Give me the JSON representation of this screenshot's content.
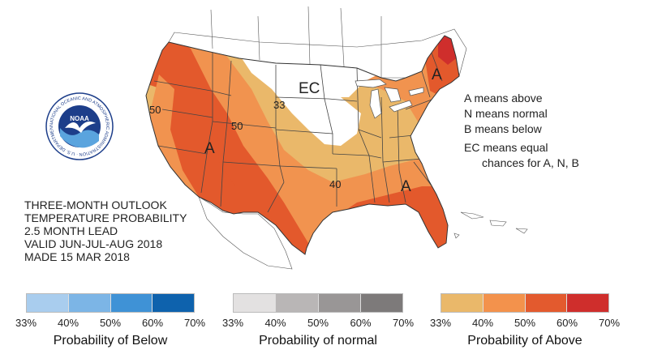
{
  "map": {
    "contour_labels": [
      "50",
      "50",
      "33",
      "40"
    ],
    "region_letters": [
      "A",
      "A",
      "A",
      "EC"
    ]
  },
  "logo": {
    "name": "NOAA",
    "ring_text": "NATIONAL OCEANIC AND ATMOSPHERIC ADMINISTRATION · U.S. DEPARTMENT OF COMMERCE"
  },
  "outlook": {
    "lines": [
      "THREE-MONTH OUTLOOK",
      "TEMPERATURE PROBABILITY",
      "2.5 MONTH LEAD",
      "VALID JUN-JUL-AUG 2018",
      "MADE 15 MAR 2018"
    ]
  },
  "key": {
    "lines": [
      "A means above",
      "N means normal",
      "B means below",
      "EC means equal",
      "chances for A, N, B"
    ]
  },
  "legends": [
    {
      "title": "Probability of Below",
      "ticks": [
        "33%",
        "40%",
        "50%",
        "60%",
        "70%"
      ],
      "colors": [
        "#a9cdee",
        "#7cb5e6",
        "#3f92d6",
        "#0e62ad"
      ]
    },
    {
      "title": "Probability of normal",
      "ticks": [
        "33%",
        "40%",
        "50%",
        "60%",
        "70%"
      ],
      "colors": [
        "#e3e1e1",
        "#b9b6b6",
        "#999696",
        "#7d7a7a"
      ]
    },
    {
      "title": "Probability of Above",
      "ticks": [
        "33%",
        "40%",
        "50%",
        "60%",
        "70%"
      ],
      "colors": [
        "#eab86a",
        "#f3924c",
        "#e35a2e",
        "#cf2e2c"
      ]
    }
  ]
}
